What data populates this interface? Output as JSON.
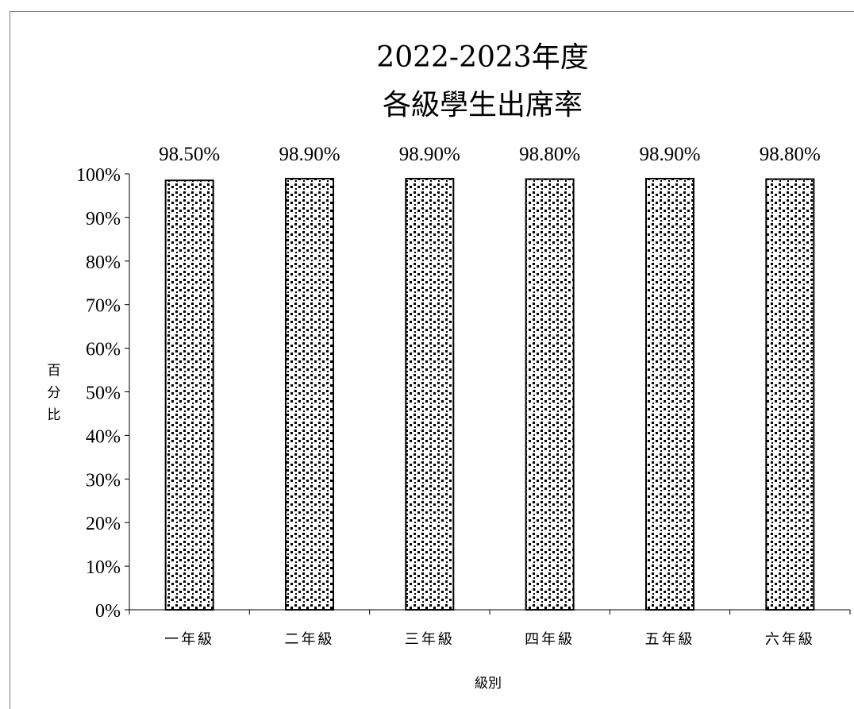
{
  "chart_data": {
    "type": "bar",
    "title_line1": "2022-2023年度",
    "title_line2": "各級學生出席率",
    "xlabel": "級別",
    "ylabel": "百分比",
    "categories": [
      "一年級",
      "二年級",
      "三年級",
      "四年級",
      "五年級",
      "六年級"
    ],
    "values": [
      98.5,
      98.9,
      98.9,
      98.8,
      98.9,
      98.8
    ],
    "data_labels": [
      "98.50%",
      "98.90%",
      "98.90%",
      "98.80%",
      "98.90%",
      "98.80%"
    ],
    "ylim": [
      0,
      100
    ],
    "yticks": [
      "0%",
      "10%",
      "20%",
      "30%",
      "40%",
      "50%",
      "60%",
      "70%",
      "80%",
      "90%",
      "100%"
    ],
    "grid": false,
    "legend": "none",
    "bar_fill": "dotted pattern",
    "colors": {
      "bar_border": "#000000",
      "pattern_dots": "#000000",
      "background": "#ffffff"
    }
  }
}
